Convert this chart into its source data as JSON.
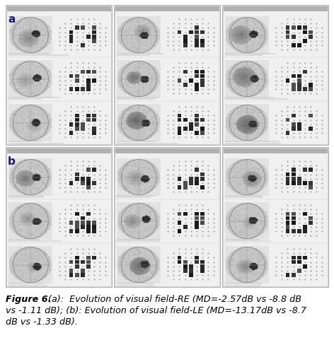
{
  "figure_width": 4.72,
  "figure_height": 4.89,
  "dpi": 100,
  "bg_color": "#ffffff",
  "caption_bold": "Figure 6.",
  "caption_rest_line1": "  (a):  Evolution of visual field-RE (MD=-2.57dB vs -8.8 dB",
  "caption_rest_line2": "vs -1.11 dB); (b): Evolution of visual field-LE (MD=-13.17dB vs -8.7",
  "caption_rest_line3": "dB vs -1.33 dB).",
  "label_a": "a",
  "label_b": "b",
  "caption_fontsize": 9.2,
  "label_fontsize": 11
}
